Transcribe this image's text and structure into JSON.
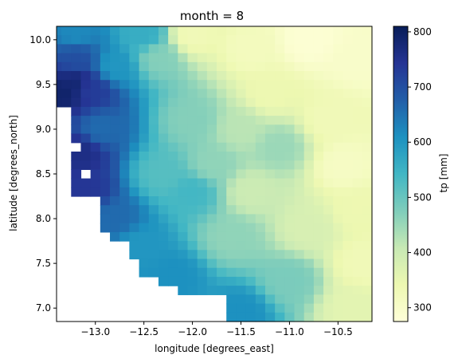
{
  "chart_data": {
    "type": "heatmap",
    "title": "month = 8",
    "xlabel": "longitude [degrees_east]",
    "ylabel": "latitude [degrees_north]",
    "xlim": [
      -13.4,
      -10.15
    ],
    "ylim": [
      6.85,
      10.15
    ],
    "x_ticks": [
      "−13.0",
      "−12.5",
      "−12.0",
      "−11.5",
      "−11.0",
      "−10.5"
    ],
    "x_tick_values": [
      -13.0,
      -12.5,
      -12.0,
      -11.5,
      -11.0,
      -10.5
    ],
    "y_ticks": [
      "7.0",
      "7.5",
      "8.0",
      "8.5",
      "9.0",
      "9.5",
      "10.0"
    ],
    "y_tick_values": [
      7.0,
      7.5,
      8.0,
      8.5,
      9.0,
      9.5,
      10.0
    ],
    "cell_size_deg": 0.1,
    "colorbar": {
      "label": "tp [mm]",
      "range": [
        275,
        810
      ],
      "ticks": [
        "300",
        "400",
        "500",
        "600",
        "700",
        "800"
      ],
      "tick_values": [
        300,
        400,
        500,
        600,
        700,
        800
      ],
      "colormap": "YlGnBu",
      "stops": [
        "#ffffd9",
        "#edf8b1",
        "#c7e9b4",
        "#7fcdbb",
        "#41b6c4",
        "#1d91c0",
        "#225ea8",
        "#253494",
        "#081d58"
      ]
    },
    "coast_west_edge_by_row": [
      {
        "lat": 10.1,
        "lon": -13.4
      },
      {
        "lat": 10.0,
        "lon": -13.4
      },
      {
        "lat": 9.9,
        "lon": -13.4
      },
      {
        "lat": 9.8,
        "lon": -13.4
      },
      {
        "lat": 9.7,
        "lon": -13.4
      },
      {
        "lat": 9.6,
        "lon": -13.4
      },
      {
        "lat": 9.5,
        "lon": -13.4
      },
      {
        "lat": 9.4,
        "lon": -13.4
      },
      {
        "lat": 9.3,
        "lon": -13.4
      },
      {
        "lat": 9.2,
        "lon": -13.2
      },
      {
        "lat": 9.1,
        "lon": -13.2
      },
      {
        "lat": 9.0,
        "lon": -13.2
      },
      {
        "lat": 8.9,
        "lon": -13.2
      },
      {
        "lat": 8.8,
        "lon": -13.2
      },
      {
        "lat": 8.7,
        "lon": -13.2
      },
      {
        "lat": 8.6,
        "lon": -13.2
      },
      {
        "lat": 8.5,
        "lon": -13.2
      },
      {
        "lat": 8.4,
        "lon": -13.2
      },
      {
        "lat": 8.3,
        "lon": -13.2
      },
      {
        "lat": 8.2,
        "lon": -12.9
      },
      {
        "lat": 8.1,
        "lon": -12.9
      },
      {
        "lat": 8.0,
        "lon": -12.9
      },
      {
        "lat": 7.9,
        "lon": -12.9
      },
      {
        "lat": 7.8,
        "lon": -12.8
      },
      {
        "lat": 7.7,
        "lon": -12.6
      },
      {
        "lat": 7.6,
        "lon": -12.6
      },
      {
        "lat": 7.5,
        "lon": -12.5
      },
      {
        "lat": 7.4,
        "lon": -12.5
      },
      {
        "lat": 7.3,
        "lon": -12.3
      },
      {
        "lat": 7.2,
        "lon": -12.1
      },
      {
        "lat": 7.1,
        "lon": -11.6
      },
      {
        "lat": 7.0,
        "lon": -11.6
      },
      {
        "lat": 6.9,
        "lon": -11.6
      }
    ],
    "missing_cells": [
      {
        "lon": -13.2,
        "lat": 8.8
      },
      {
        "lon": -13.1,
        "lat": 8.5
      },
      {
        "lon": -13.3,
        "lat": 7.8
      },
      {
        "lon": -13.2,
        "lat": 7.8
      }
    ],
    "field_anchors": [
      {
        "lon": -13.35,
        "lat": 9.4,
        "tp": 790
      },
      {
        "lon": -13.2,
        "lat": 9.5,
        "tp": 780
      },
      {
        "lon": -13.05,
        "lat": 9.45,
        "tp": 730
      },
      {
        "lon": -13.2,
        "lat": 9.8,
        "tp": 700
      },
      {
        "lon": -13.2,
        "lat": 10.05,
        "tp": 620
      },
      {
        "lon": -13.15,
        "lat": 8.75,
        "tp": 760
      },
      {
        "lon": -13.1,
        "lat": 8.3,
        "tp": 740
      },
      {
        "lon": -12.95,
        "lat": 9.0,
        "tp": 660
      },
      {
        "lon": -12.8,
        "lat": 8.0,
        "tp": 660
      },
      {
        "lon": -12.8,
        "lat": 9.7,
        "tp": 600
      },
      {
        "lon": -12.55,
        "lat": 7.7,
        "tp": 600
      },
      {
        "lon": -12.2,
        "lat": 7.35,
        "tp": 610
      },
      {
        "lon": -11.5,
        "lat": 6.95,
        "tp": 610
      },
      {
        "lon": -12.5,
        "lat": 10.05,
        "tp": 560
      },
      {
        "lon": -12.3,
        "lat": 8.5,
        "tp": 520
      },
      {
        "lon": -12.0,
        "lat": 8.3,
        "tp": 540
      },
      {
        "lon": -12.35,
        "lat": 9.8,
        "tp": 470
      },
      {
        "lon": -12.0,
        "lat": 9.1,
        "tp": 470
      },
      {
        "lon": -11.8,
        "lat": 8.6,
        "tp": 460
      },
      {
        "lon": -11.6,
        "lat": 7.8,
        "tp": 460
      },
      {
        "lon": -11.0,
        "lat": 7.3,
        "tp": 480
      },
      {
        "lon": -11.1,
        "lat": 8.8,
        "tp": 450
      },
      {
        "lon": -12.0,
        "lat": 10.05,
        "tp": 330
      },
      {
        "lon": -11.4,
        "lat": 9.9,
        "tp": 320
      },
      {
        "lon": -10.8,
        "lat": 10.0,
        "tp": 285
      },
      {
        "lon": -10.3,
        "lat": 9.8,
        "tp": 300
      },
      {
        "lon": -11.2,
        "lat": 9.4,
        "tp": 340
      },
      {
        "lon": -10.6,
        "lat": 9.1,
        "tp": 330
      },
      {
        "lon": -10.45,
        "lat": 8.6,
        "tp": 310
      },
      {
        "lon": -10.3,
        "lat": 8.1,
        "tp": 340
      },
      {
        "lon": -10.25,
        "lat": 7.5,
        "tp": 330
      },
      {
        "lon": -10.35,
        "lat": 7.0,
        "tp": 360
      },
      {
        "lon": -10.8,
        "lat": 7.9,
        "tp": 380
      },
      {
        "lon": -11.4,
        "lat": 8.3,
        "tp": 400
      },
      {
        "lon": -11.5,
        "lat": 9.0,
        "tp": 420
      }
    ]
  }
}
